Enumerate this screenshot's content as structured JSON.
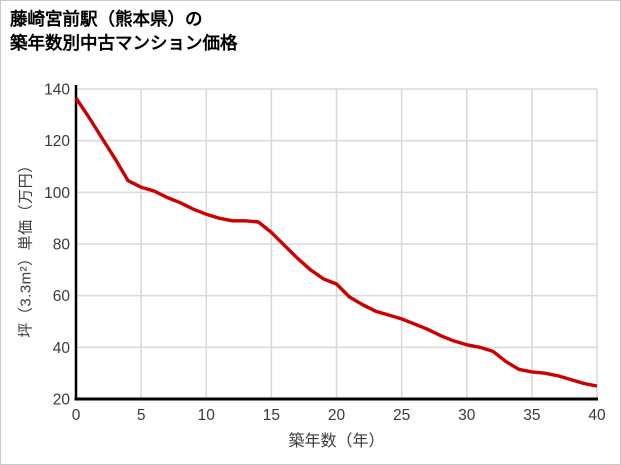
{
  "title": {
    "line1": "藤崎宮前駅（熊本県）の",
    "line2": "築年数別中古マンション価格"
  },
  "chart_data": {
    "type": "line",
    "title": "藤崎宮前駅（熊本県）の築年数別中古マンション価格",
    "xlabel": "築年数（年）",
    "ylabel": "坪（3.3m²）単価（万円）",
    "x": [
      0,
      1,
      2,
      3,
      4,
      5,
      6,
      7,
      8,
      9,
      10,
      11,
      12,
      13,
      14,
      15,
      16,
      17,
      18,
      19,
      20,
      21,
      22,
      23,
      24,
      25,
      26,
      27,
      28,
      29,
      30,
      31,
      32,
      33,
      34,
      35,
      36,
      37,
      38,
      39,
      40
    ],
    "values": [
      136.5,
      129,
      121,
      113,
      104.5,
      102,
      100.5,
      98,
      96,
      93.5,
      91.5,
      90,
      89,
      89,
      88.5,
      84.5,
      79.5,
      74.5,
      70,
      66.5,
      64.5,
      59.5,
      56.5,
      54,
      52.5,
      51,
      49,
      47,
      44.5,
      42.5,
      41,
      40,
      38.5,
      34.5,
      31.5,
      30.5,
      30,
      29,
      27.5,
      26,
      25
    ],
    "xlim": [
      0,
      40
    ],
    "ylim": [
      20,
      140
    ],
    "xticks": [
      0,
      5,
      10,
      15,
      20,
      25,
      30,
      35,
      40
    ],
    "yticks": [
      20,
      40,
      60,
      80,
      100,
      120,
      140
    ],
    "grid": true,
    "legend": false,
    "line_color": "#cc0000",
    "grid_color": "#d8d8d8",
    "axis_color": "#000000",
    "tick_label_color": "#3a3a3a"
  }
}
